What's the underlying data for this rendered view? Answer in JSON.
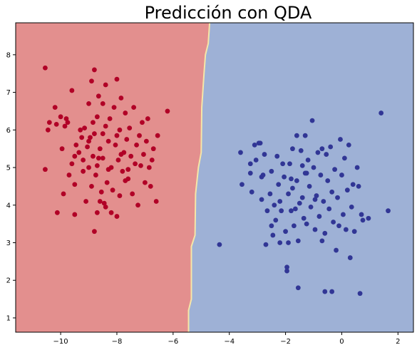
{
  "chart_data": {
    "type": "scatter",
    "title": "Predicción con QDA",
    "xlabel": "",
    "ylabel": "",
    "xlim": [
      -11.6,
      2.55
    ],
    "ylim": [
      0.62,
      8.85
    ],
    "grid": false,
    "x_ticks": [
      -10,
      -8,
      -6,
      -4,
      -2,
      0,
      2
    ],
    "x_tick_labels": [
      "−10",
      "−8",
      "−6",
      "−4",
      "−2",
      "0",
      "2"
    ],
    "y_ticks": [
      1,
      2,
      3,
      4,
      5,
      6,
      7,
      8
    ],
    "y_tick_labels": [
      "1",
      "2",
      "3",
      "4",
      "5",
      "6",
      "7",
      "8"
    ],
    "regions": {
      "left_color": "#e38f8e",
      "right_color": "#9eb1d6",
      "boundary_color": "#f5e6a8",
      "boundary": [
        [
          -5.45,
          0.62
        ],
        [
          -5.45,
          1.2
        ],
        [
          -5.35,
          1.5
        ],
        [
          -5.35,
          2.9
        ],
        [
          -5.22,
          3.2
        ],
        [
          -5.2,
          4.3
        ],
        [
          -5.1,
          5.0
        ],
        [
          -5.0,
          5.4
        ],
        [
          -4.98,
          6.6
        ],
        [
          -4.9,
          7.5
        ],
        [
          -4.85,
          8.0
        ],
        [
          -4.75,
          8.3
        ],
        [
          -4.7,
          8.85
        ]
      ]
    },
    "series": [
      {
        "color": "#b10026",
        "points": [
          [
            -10.55,
            7.65
          ],
          [
            -10.55,
            4.95
          ],
          [
            -10.45,
            6.0
          ],
          [
            -10.4,
            6.2
          ],
          [
            -10.2,
            6.6
          ],
          [
            -10.15,
            6.15
          ],
          [
            -10.12,
            3.8
          ],
          [
            -10.0,
            6.35
          ],
          [
            -9.95,
            5.5
          ],
          [
            -9.9,
            4.3
          ],
          [
            -9.85,
            6.1
          ],
          [
            -9.8,
            6.3
          ],
          [
            -9.75,
            6.2
          ],
          [
            -9.7,
            4.8
          ],
          [
            -9.6,
            7.05
          ],
          [
            -9.6,
            5.1
          ],
          [
            -9.5,
            4.55
          ],
          [
            -9.5,
            3.75
          ],
          [
            -9.5,
            5.3
          ],
          [
            -9.45,
            5.6
          ],
          [
            -9.35,
            5.4
          ],
          [
            -9.3,
            6.0
          ],
          [
            -9.25,
            5.8
          ],
          [
            -9.2,
            5.2
          ],
          [
            -9.2,
            4.9
          ],
          [
            -9.15,
            6.05
          ],
          [
            -9.1,
            4.1
          ],
          [
            -9.05,
            5.55
          ],
          [
            -9.0,
            6.7
          ],
          [
            -9.0,
            5.0
          ],
          [
            -8.95,
            5.8
          ],
          [
            -8.9,
            7.3
          ],
          [
            -8.9,
            4.5
          ],
          [
            -8.85,
            5.3
          ],
          [
            -8.85,
            6.2
          ],
          [
            -8.8,
            5.9
          ],
          [
            -8.8,
            7.6
          ],
          [
            -8.8,
            3.3
          ],
          [
            -8.75,
            4.8
          ],
          [
            -8.7,
            5.05
          ],
          [
            -8.7,
            3.8
          ],
          [
            -8.7,
            6.35
          ],
          [
            -8.65,
            6.9
          ],
          [
            -8.6,
            4.1
          ],
          [
            -8.6,
            5.5
          ],
          [
            -8.55,
            4.35
          ],
          [
            -8.5,
            6.7
          ],
          [
            -8.5,
            5.9
          ],
          [
            -8.5,
            5.25
          ],
          [
            -8.45,
            4.05
          ],
          [
            -8.4,
            3.95
          ],
          [
            -8.4,
            6.1
          ],
          [
            -8.4,
            7.2
          ],
          [
            -8.35,
            4.6
          ],
          [
            -8.3,
            5.7
          ],
          [
            -8.25,
            6.3
          ],
          [
            -8.2,
            3.8
          ],
          [
            -8.2,
            5.0
          ],
          [
            -8.15,
            4.4
          ],
          [
            -8.1,
            6.6
          ],
          [
            -8.05,
            5.6
          ],
          [
            -8.0,
            7.35
          ],
          [
            -8.0,
            3.7
          ],
          [
            -7.95,
            5.2
          ],
          [
            -7.9,
            6.0
          ],
          [
            -7.9,
            4.25
          ],
          [
            -7.85,
            6.85
          ],
          [
            -7.8,
            4.9
          ],
          [
            -7.75,
            5.4
          ],
          [
            -7.7,
            6.45
          ],
          [
            -7.7,
            4.65
          ],
          [
            -7.65,
            5.75
          ],
          [
            -7.6,
            4.95
          ],
          [
            -7.55,
            6.05
          ],
          [
            -7.5,
            5.3
          ],
          [
            -7.45,
            4.3
          ],
          [
            -7.4,
            6.6
          ],
          [
            -7.35,
            5.1
          ],
          [
            -7.3,
            5.6
          ],
          [
            -7.25,
            4.0
          ],
          [
            -7.2,
            5.85
          ],
          [
            -7.15,
            5.05
          ],
          [
            -7.1,
            6.2
          ],
          [
            -7.05,
            5.35
          ],
          [
            -7.0,
            4.6
          ],
          [
            -6.95,
            5.7
          ],
          [
            -6.9,
            6.3
          ],
          [
            -6.85,
            5.0
          ],
          [
            -6.8,
            4.5
          ],
          [
            -6.75,
            5.2
          ],
          [
            -6.7,
            5.5
          ],
          [
            -6.6,
            4.1
          ],
          [
            -6.55,
            5.85
          ],
          [
            -6.2,
            6.5
          ],
          [
            -7.6,
            4.7
          ],
          [
            -8.0,
            5.85
          ],
          [
            -9.0,
            5.7
          ],
          [
            -8.3,
            4.95
          ],
          [
            -7.85,
            5.35
          ],
          [
            -8.65,
            5.25
          ]
        ]
      },
      {
        "color": "#313695",
        "points": [
          [
            -4.35,
            2.95
          ],
          [
            -3.6,
            5.4
          ],
          [
            -3.55,
            4.55
          ],
          [
            -3.25,
            5.1
          ],
          [
            -3.25,
            4.85
          ],
          [
            -3.2,
            4.35
          ],
          [
            -3.1,
            5.6
          ],
          [
            -3.05,
            5.2
          ],
          [
            -2.95,
            5.65
          ],
          [
            -2.9,
            5.65
          ],
          [
            -2.85,
            4.75
          ],
          [
            -2.85,
            4.15
          ],
          [
            -2.8,
            4.8
          ],
          [
            -2.75,
            5.35
          ],
          [
            -2.7,
            2.95
          ],
          [
            -2.65,
            3.85
          ],
          [
            -2.55,
            4.3
          ],
          [
            -2.5,
            4.9
          ],
          [
            -2.5,
            3.45
          ],
          [
            -2.45,
            3.2
          ],
          [
            -2.4,
            4.0
          ],
          [
            -2.35,
            3.6
          ],
          [
            -2.3,
            5.3
          ],
          [
            -2.25,
            4.55
          ],
          [
            -2.2,
            3.0
          ],
          [
            -2.15,
            3.85
          ],
          [
            -2.1,
            5.1
          ],
          [
            -2.05,
            4.75
          ],
          [
            -2.0,
            3.3
          ],
          [
            -1.95,
            2.35
          ],
          [
            -1.95,
            2.25
          ],
          [
            -1.9,
            4.3
          ],
          [
            -1.85,
            5.1
          ],
          [
            -1.8,
            4.7
          ],
          [
            -1.8,
            3.85
          ],
          [
            -1.75,
            5.5
          ],
          [
            -1.7,
            3.45
          ],
          [
            -1.65,
            3.9
          ],
          [
            -1.6,
            4.65
          ],
          [
            -1.55,
            3.05
          ],
          [
            -1.5,
            4.05
          ],
          [
            -1.45,
            5.45
          ],
          [
            -1.4,
            5.05
          ],
          [
            -1.4,
            4.2
          ],
          [
            -1.35,
            3.65
          ],
          [
            -1.3,
            5.85
          ],
          [
            -1.3,
            4.85
          ],
          [
            -1.25,
            3.5
          ],
          [
            -1.2,
            5.2
          ],
          [
            -1.15,
            4.5
          ],
          [
            -1.1,
            3.95
          ],
          [
            -1.05,
            6.25
          ],
          [
            -1.0,
            5.0
          ],
          [
            -0.95,
            3.35
          ],
          [
            -0.9,
            4.25
          ],
          [
            -0.85,
            5.4
          ],
          [
            -0.8,
            3.7
          ],
          [
            -0.75,
            4.8
          ],
          [
            -0.7,
            5.5
          ],
          [
            -0.7,
            3.05
          ],
          [
            -0.65,
            4.1
          ],
          [
            -0.6,
            1.7
          ],
          [
            -0.6,
            3.25
          ],
          [
            -0.55,
            5.35
          ],
          [
            -0.5,
            4.65
          ],
          [
            -0.45,
            3.9
          ],
          [
            -0.4,
            5.55
          ],
          [
            -0.35,
            4.35
          ],
          [
            -0.3,
            3.55
          ],
          [
            -0.25,
            4.95
          ],
          [
            -0.2,
            2.8
          ],
          [
            -0.15,
            4.2
          ],
          [
            -0.1,
            3.45
          ],
          [
            -0.05,
            5.75
          ],
          [
            0.0,
            4.8
          ],
          [
            0.05,
            3.75
          ],
          [
            0.1,
            5.25
          ],
          [
            0.15,
            3.35
          ],
          [
            0.2,
            4.4
          ],
          [
            0.25,
            5.6
          ],
          [
            0.3,
            2.6
          ],
          [
            0.35,
            3.95
          ],
          [
            0.4,
            4.55
          ],
          [
            0.45,
            3.3
          ],
          [
            0.55,
            5.0
          ],
          [
            0.6,
            4.5
          ],
          [
            0.65,
            1.65
          ],
          [
            0.7,
            3.75
          ],
          [
            0.75,
            3.6
          ],
          [
            0.95,
            3.65
          ],
          [
            1.4,
            6.45
          ],
          [
            1.65,
            3.85
          ],
          [
            -1.55,
            1.8
          ],
          [
            -0.35,
            1.7
          ],
          [
            -1.6,
            5.85
          ],
          [
            -2.2,
            4.1
          ],
          [
            -1.75,
            4.45
          ],
          [
            -0.95,
            4.15
          ],
          [
            -1.9,
            3.0
          ],
          [
            -1.25,
            4.85
          ]
        ]
      }
    ]
  }
}
